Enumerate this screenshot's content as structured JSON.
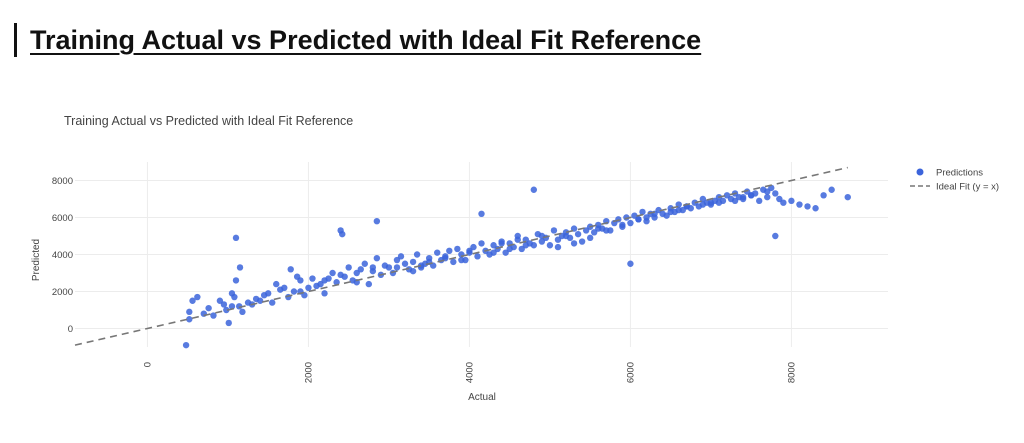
{
  "page": {
    "heading": "Training Actual vs Predicted with Ideal Fit Reference"
  },
  "colors": {
    "points": "#3b64db",
    "ideal_line": "#777777",
    "grid": "#ececec",
    "text": "#444444"
  },
  "chart_data": {
    "type": "scatter",
    "title": "Training Actual vs Predicted with Ideal Fit Reference",
    "xlabel": "Actual",
    "ylabel": "Predicted",
    "xlim": [
      -900,
      9200
    ],
    "ylim": [
      -1000,
      9000
    ],
    "x_ticks": [
      0,
      2000,
      4000,
      6000,
      8000
    ],
    "y_ticks": [
      0,
      2000,
      4000,
      6000,
      8000
    ],
    "x_tick_labels": [
      "0",
      "2000",
      "4000",
      "6000",
      "8000"
    ],
    "y_tick_labels": [
      "0",
      "2000",
      "4000",
      "6000",
      "8000"
    ],
    "grid": true,
    "legend_position": "top-right",
    "legend": [
      "Predictions",
      "Ideal Fit (y = x)"
    ],
    "ideal_line": {
      "name": "Ideal Fit (y = x)",
      "x": [
        -900,
        8700
      ],
      "y": [
        -900,
        8700
      ]
    },
    "series": [
      {
        "name": "Predictions",
        "x": [
          480,
          560,
          520,
          620,
          700,
          760,
          820,
          900,
          950,
          980,
          1010,
          1050,
          1080,
          1100,
          1140,
          1180,
          1250,
          1300,
          1350,
          1400,
          1450,
          1500,
          1550,
          1600,
          1650,
          1700,
          1750,
          1780,
          1820,
          1860,
          1900,
          1950,
          2000,
          2050,
          2100,
          2150,
          2200,
          2250,
          2300,
          2350,
          2400,
          2450,
          2500,
          2550,
          2600,
          2650,
          2700,
          2750,
          2800,
          2850,
          2900,
          2950,
          3000,
          3050,
          3100,
          3150,
          3200,
          3250,
          3300,
          3350,
          3400,
          3450,
          3500,
          3550,
          3600,
          3650,
          3700,
          3750,
          3800,
          3850,
          3900,
          3950,
          4000,
          4050,
          4100,
          4150,
          4200,
          4250,
          4300,
          4350,
          4400,
          4450,
          4500,
          4550,
          4600,
          4650,
          4700,
          4750,
          4800,
          4850,
          4900,
          4950,
          5000,
          5050,
          5100,
          5150,
          5200,
          5250,
          5300,
          5350,
          5400,
          5450,
          5500,
          5550,
          5600,
          5650,
          5700,
          5750,
          5800,
          5850,
          5900,
          5950,
          6000,
          6050,
          6100,
          6150,
          6200,
          6250,
          6300,
          6350,
          6400,
          6450,
          6500,
          6550,
          6600,
          6650,
          6700,
          6750,
          6800,
          6850,
          6900,
          6950,
          7000,
          7050,
          7100,
          7150,
          7200,
          7250,
          7300,
          7350,
          7400,
          7450,
          7500,
          7550,
          7600,
          7650,
          7700,
          7750,
          7800,
          7850,
          7900,
          8000,
          8100,
          8200,
          8300,
          8400,
          8500,
          8700,
          1100,
          1150,
          2400,
          2420,
          2850,
          4150,
          4800,
          6000,
          7800,
          520,
          1050,
          1900,
          2600,
          3100,
          3300,
          3500,
          3700,
          3900,
          4300,
          4500,
          4700,
          5100,
          5300,
          5500,
          5700,
          5900,
          6100,
          6300,
          6500,
          6700,
          6900,
          7100,
          7300,
          7500,
          7700,
          2200,
          2800,
          3400,
          4000,
          4400,
          4600,
          4900,
          5200,
          5600,
          6200,
          6600,
          7000,
          7400
        ],
        "y": [
          -900,
          1500,
          900,
          1700,
          800,
          1100,
          700,
          1500,
          1300,
          1000,
          300,
          1900,
          1700,
          2600,
          1200,
          900,
          1400,
          1300,
          1600,
          1500,
          1800,
          1900,
          1400,
          2400,
          2100,
          2200,
          1700,
          3200,
          2000,
          2800,
          2600,
          1800,
          2200,
          2700,
          2300,
          2400,
          1900,
          2700,
          3000,
          2500,
          2900,
          2800,
          3300,
          2600,
          3000,
          3200,
          3500,
          2400,
          3100,
          3800,
          2900,
          3400,
          3300,
          3000,
          3700,
          3900,
          3500,
          3200,
          3600,
          4000,
          3300,
          3500,
          3800,
          3400,
          4100,
          3700,
          3900,
          4200,
          3600,
          4300,
          4000,
          3700,
          4100,
          4400,
          3900,
          4600,
          4200,
          4000,
          4500,
          4300,
          4700,
          4100,
          4600,
          4400,
          5000,
          4300,
          4800,
          4600,
          4500,
          5100,
          4700,
          4900,
          4500,
          5300,
          4800,
          5000,
          5200,
          4900,
          5400,
          5100,
          4700,
          5300,
          5500,
          5200,
          5600,
          5400,
          5800,
          5300,
          5700,
          5900,
          5500,
          6000,
          5700,
          6100,
          5900,
          6300,
          5800,
          6200,
          6000,
          6400,
          6200,
          6100,
          6500,
          6300,
          6700,
          6400,
          6600,
          6500,
          6800,
          6600,
          7000,
          6800,
          6700,
          6900,
          7100,
          6900,
          7200,
          7000,
          7300,
          7100,
          7000,
          7400,
          7200,
          7300,
          6900,
          7500,
          7100,
          7600,
          7300,
          7000,
          6800,
          6900,
          6700,
          6600,
          6500,
          7200,
          7500,
          7100,
          4900,
          3300,
          5300,
          5100,
          5800,
          6200,
          7500,
          3500,
          5000,
          500,
          1200,
          2000,
          2500,
          3300,
          3100,
          3600,
          3800,
          3700,
          4100,
          4300,
          4500,
          4400,
          4600,
          4900,
          5300,
          5600,
          5900,
          6200,
          6300,
          6600,
          6700,
          6800,
          6900,
          7200,
          7400,
          2600,
          3300,
          3400,
          4200,
          4600,
          4800,
          5000,
          5000,
          5400,
          6000,
          6400,
          6800,
          7100
        ]
      }
    ]
  }
}
